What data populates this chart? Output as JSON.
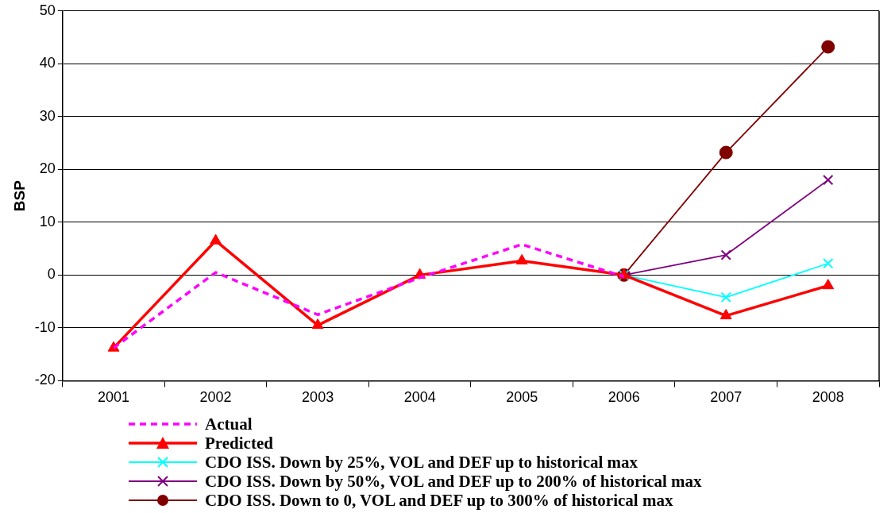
{
  "chart_data": {
    "type": "line",
    "ylabel": "BSP",
    "categories": [
      "2001",
      "2002",
      "2003",
      "2004",
      "2005",
      "2006",
      "2007",
      "2008"
    ],
    "ylim": [
      -20,
      50
    ],
    "yticks": [
      -20,
      -10,
      0,
      10,
      20,
      30,
      40,
      50
    ],
    "grid": "y",
    "legend": "bottom left",
    "series": [
      {
        "name": "Actual",
        "color": "#ff00ff",
        "line_style": "dashed",
        "marker": "none",
        "values": [
          -13.8,
          0.5,
          -7.5,
          -0.5,
          5.8,
          -0.3,
          null,
          null
        ]
      },
      {
        "name": "Predicted",
        "color": "#ff0000",
        "marker": "triangle",
        "values": [
          -13.8,
          6.5,
          -9.5,
          0,
          2.7,
          0,
          -7.7,
          -2.0
        ]
      },
      {
        "name": "CDO ISS. Down by 25%, VOL and DEF up to historical max",
        "color": "#00ffff",
        "marker": "cross",
        "values": [
          null,
          null,
          null,
          null,
          null,
          0,
          -4.2,
          2.2
        ]
      },
      {
        "name": "CDO ISS. Down by 50%, VOL and DEF up to 200% of historical max",
        "color": "#800080",
        "marker": "cross",
        "values": [
          null,
          null,
          null,
          null,
          null,
          0,
          3.8,
          18
        ]
      },
      {
        "name": "CDO ISS. Down to 0, VOL and DEF up to 300% of historical max",
        "color": "#800000",
        "marker": "circle",
        "values": [
          null,
          null,
          null,
          null,
          null,
          0,
          23.2,
          43.2
        ]
      }
    ]
  }
}
